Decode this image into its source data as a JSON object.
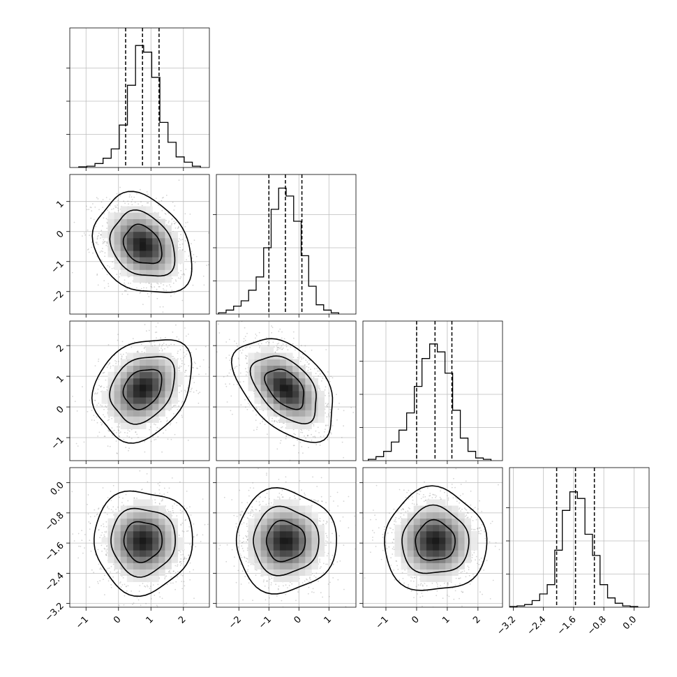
{
  "chart_data": {
    "type": "corner",
    "n_params": 4,
    "params": [
      {
        "index": 0,
        "center": 0.75,
        "sigma": 0.5,
        "quantiles": [
          0.22,
          0.74,
          1.25
        ],
        "range": [
          -1.5,
          2.8
        ],
        "ticks": [
          -1,
          0,
          1,
          2
        ],
        "tick_labels": [
          "−1",
          "0",
          "1",
          "2"
        ],
        "hist": [
          {
            "x": -1.1,
            "y": 0.005
          },
          {
            "x": -0.85,
            "y": 0.01
          },
          {
            "x": -0.6,
            "y": 0.03
          },
          {
            "x": -0.35,
            "y": 0.07
          },
          {
            "x": -0.1,
            "y": 0.14
          },
          {
            "x": 0.15,
            "y": 0.32
          },
          {
            "x": 0.4,
            "y": 0.62
          },
          {
            "x": 0.65,
            "y": 0.92
          },
          {
            "x": 0.9,
            "y": 0.87
          },
          {
            "x": 1.15,
            "y": 0.68
          },
          {
            "x": 1.4,
            "y": 0.34
          },
          {
            "x": 1.65,
            "y": 0.19
          },
          {
            "x": 1.9,
            "y": 0.08
          },
          {
            "x": 2.15,
            "y": 0.04
          },
          {
            "x": 2.4,
            "y": 0.01
          }
        ]
      },
      {
        "index": 1,
        "center": -0.45,
        "sigma": 0.55,
        "quantiles": [
          -1.0,
          -0.45,
          0.1
        ],
        "range": [
          -2.75,
          1.9
        ],
        "ticks": [
          -2,
          -1,
          0,
          1
        ],
        "tick_labels": [
          "−2",
          "−1",
          "0",
          "1"
        ],
        "hist": [
          {
            "x": -2.55,
            "y": 0.01
          },
          {
            "x": -2.3,
            "y": 0.03
          },
          {
            "x": -2.05,
            "y": 0.06
          },
          {
            "x": -1.8,
            "y": 0.1
          },
          {
            "x": -1.55,
            "y": 0.18
          },
          {
            "x": -1.3,
            "y": 0.28
          },
          {
            "x": -1.05,
            "y": 0.5
          },
          {
            "x": -0.8,
            "y": 0.79
          },
          {
            "x": -0.55,
            "y": 0.95
          },
          {
            "x": -0.3,
            "y": 0.89
          },
          {
            "x": -0.05,
            "y": 0.7
          },
          {
            "x": 0.2,
            "y": 0.44
          },
          {
            "x": 0.45,
            "y": 0.21
          },
          {
            "x": 0.7,
            "y": 0.07
          },
          {
            "x": 0.95,
            "y": 0.03
          },
          {
            "x": 1.2,
            "y": 0.01
          }
        ]
      },
      {
        "index": 2,
        "center": 0.6,
        "sigma": 0.55,
        "quantiles": [
          0.0,
          0.6,
          1.15
        ],
        "range": [
          -1.75,
          2.8
        ],
        "ticks": [
          -1,
          0,
          1,
          2
        ],
        "tick_labels": [
          "−1",
          "0",
          "1",
          "2"
        ],
        "hist": [
          {
            "x": -1.45,
            "y": 0.01
          },
          {
            "x": -1.2,
            "y": 0.03
          },
          {
            "x": -0.95,
            "y": 0.07
          },
          {
            "x": -0.7,
            "y": 0.14
          },
          {
            "x": -0.45,
            "y": 0.23
          },
          {
            "x": -0.2,
            "y": 0.36
          },
          {
            "x": 0.05,
            "y": 0.56
          },
          {
            "x": 0.3,
            "y": 0.77
          },
          {
            "x": 0.55,
            "y": 0.88
          },
          {
            "x": 0.8,
            "y": 0.82
          },
          {
            "x": 1.05,
            "y": 0.66
          },
          {
            "x": 1.3,
            "y": 0.38
          },
          {
            "x": 1.55,
            "y": 0.17
          },
          {
            "x": 1.8,
            "y": 0.07
          },
          {
            "x": 2.05,
            "y": 0.02
          },
          {
            "x": 2.3,
            "y": 0.01
          }
        ]
      },
      {
        "index": 3,
        "center": -1.55,
        "sigma": 0.45,
        "quantiles": [
          -2.05,
          -1.55,
          -1.05
        ],
        "range": [
          -3.3,
          0.4
        ],
        "ticks": [
          -3.2,
          -2.4,
          -1.6,
          -0.8,
          0.0
        ],
        "tick_labels": [
          "−3.2",
          "−2.4",
          "−1.6",
          "−0.8",
          "0.0"
        ],
        "hist": [
          {
            "x": -3.2,
            "y": 0.005
          },
          {
            "x": -3.0,
            "y": 0.01
          },
          {
            "x": -2.8,
            "y": 0.02
          },
          {
            "x": -2.6,
            "y": 0.05
          },
          {
            "x": -2.4,
            "y": 0.1
          },
          {
            "x": -2.2,
            "y": 0.17
          },
          {
            "x": -2.0,
            "y": 0.43
          },
          {
            "x": -1.8,
            "y": 0.73
          },
          {
            "x": -1.6,
            "y": 0.87
          },
          {
            "x": -1.4,
            "y": 0.82
          },
          {
            "x": -1.2,
            "y": 0.55
          },
          {
            "x": -1.0,
            "y": 0.39
          },
          {
            "x": -0.8,
            "y": 0.17
          },
          {
            "x": -0.6,
            "y": 0.07
          },
          {
            "x": -0.4,
            "y": 0.03
          },
          {
            "x": -0.2,
            "y": 0.01
          },
          {
            "x": 0.0,
            "y": 0.005
          }
        ]
      }
    ],
    "correlations": {
      "1,0": -0.25,
      "2,0": 0.25,
      "2,1": -0.45,
      "3,0": 0.0,
      "3,1": 0.0,
      "3,2": 0.0
    },
    "contour_levels": [
      0.5,
      0.86,
      0.99
    ],
    "grid": true,
    "quantile_line_style": "dashed",
    "colors": {
      "line": "#000000",
      "grid": "#bdbdbd",
      "scatter": "#808080",
      "density_dark": "#1a1a1a"
    }
  }
}
